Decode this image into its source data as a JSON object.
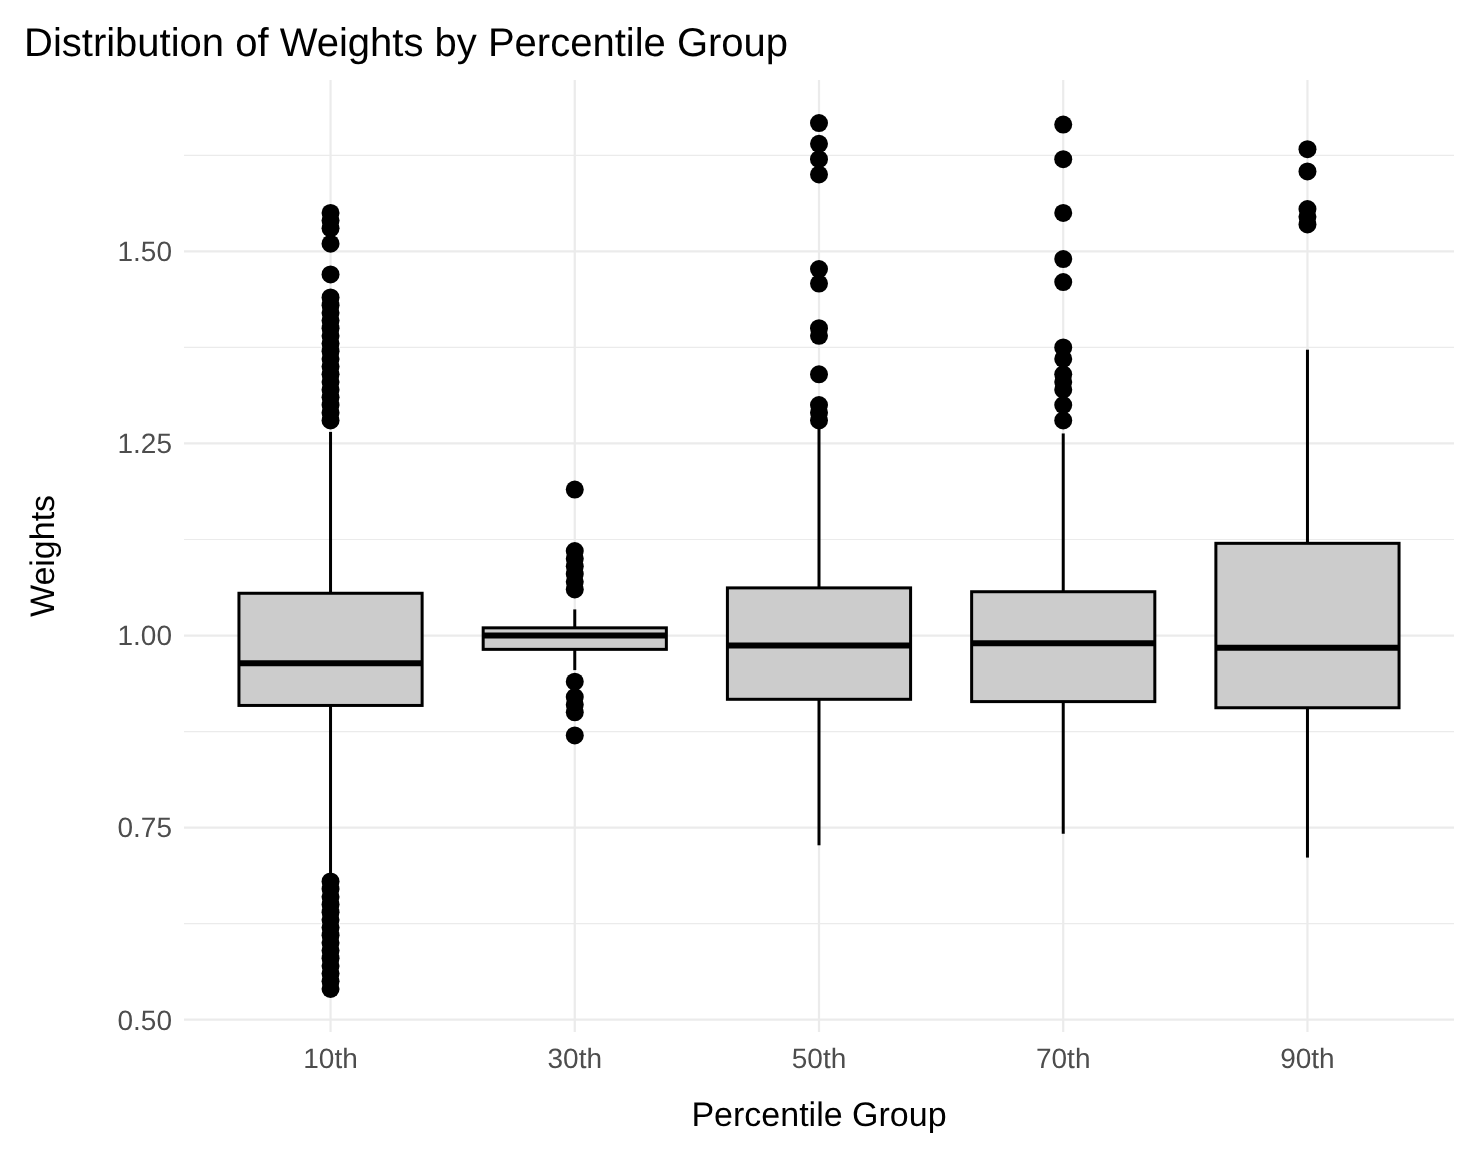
{
  "chart_data": {
    "type": "box",
    "title": "Distribution of Weights by Percentile Group",
    "xlabel": "Percentile Group",
    "ylabel": "Weights",
    "categories": [
      "10th",
      "30th",
      "50th",
      "70th",
      "90th"
    ],
    "boxes": [
      {
        "low": 0.69,
        "q1": 0.909,
        "median": 0.964,
        "q3": 1.055,
        "high": 1.265,
        "outliers": [
          1.28,
          1.29,
          1.3,
          1.31,
          1.32,
          1.33,
          1.34,
          1.35,
          1.36,
          1.37,
          1.38,
          1.39,
          1.4,
          1.41,
          1.42,
          1.43,
          1.44,
          1.47,
          1.51,
          1.53,
          1.54,
          1.55,
          0.54,
          0.55,
          0.56,
          0.57,
          0.58,
          0.59,
          0.6,
          0.61,
          0.62,
          0.63,
          0.64,
          0.65,
          0.66,
          0.67,
          0.68
        ]
      },
      {
        "low": 0.955,
        "q1": 0.982,
        "median": 1.0,
        "q3": 1.01,
        "high": 1.034,
        "outliers": [
          1.19,
          1.06,
          1.07,
          1.08,
          1.09,
          1.1,
          1.11,
          0.94,
          0.92,
          0.91,
          0.9,
          0.87
        ]
      },
      {
        "low": 0.727,
        "q1": 0.917,
        "median": 0.987,
        "q3": 1.062,
        "high": 1.273,
        "outliers": [
          1.28,
          1.29,
          1.3,
          1.34,
          1.39,
          1.4,
          1.458,
          1.477,
          1.6,
          1.62,
          1.64,
          1.667
        ]
      },
      {
        "low": 0.742,
        "q1": 0.914,
        "median": 0.99,
        "q3": 1.057,
        "high": 1.263,
        "outliers": [
          1.28,
          1.3,
          1.32,
          1.33,
          1.34,
          1.36,
          1.375,
          1.46,
          1.49,
          1.55,
          1.62,
          1.665
        ]
      },
      {
        "low": 0.711,
        "q1": 0.906,
        "median": 0.984,
        "q3": 1.12,
        "high": 1.372,
        "outliers": [
          1.535,
          1.545,
          1.555,
          1.604,
          1.633
        ]
      }
    ],
    "color": "#cccccc",
    "ylim": [
      0.484,
      1.723
    ],
    "yticks": [
      {
        "value": 0.5,
        "label": "0.50"
      },
      {
        "value": 0.625,
        "label": null
      },
      {
        "value": 0.75,
        "label": "0.75"
      },
      {
        "value": 0.875,
        "label": null
      },
      {
        "value": 1.0,
        "label": "1.00"
      },
      {
        "value": 1.125,
        "label": null
      },
      {
        "value": 1.25,
        "label": "1.25"
      },
      {
        "value": 1.375,
        "label": null
      },
      {
        "value": 1.5,
        "label": "1.50"
      },
      {
        "value": 1.625,
        "label": null
      }
    ],
    "grid": true,
    "marker": "circle"
  }
}
